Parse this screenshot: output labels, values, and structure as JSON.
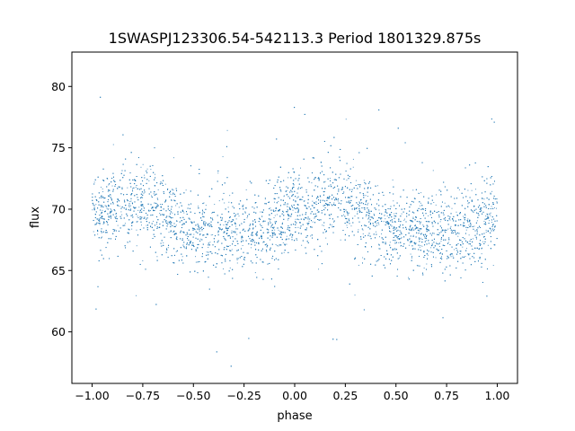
{
  "chart_data": {
    "type": "scatter",
    "title": "1SWASPJ123306.54-542113.3 Period 1801329.875s",
    "xlabel": "phase",
    "ylabel": "flux",
    "xlim": [
      -1.1,
      1.1
    ],
    "ylim": [
      55.8,
      82.8
    ],
    "x_ticks": [
      -1.0,
      -0.75,
      -0.5,
      -0.25,
      0.0,
      0.25,
      0.5,
      0.75,
      1.0
    ],
    "x_tick_labels": [
      "−1.00",
      "−0.75",
      "−0.50",
      "−0.25",
      "0.00",
      "0.25",
      "0.50",
      "0.75",
      "1.00"
    ],
    "y_ticks": [
      60,
      65,
      70,
      75,
      80
    ],
    "y_tick_labels": [
      "60",
      "65",
      "70",
      "75",
      "80"
    ],
    "grid": false,
    "legend": "none",
    "marker_color": "#1f77b4",
    "series": [
      {
        "phase_profile": [
          [
            -1.0,
            70.0
          ],
          [
            -0.95,
            69.8
          ],
          [
            -0.9,
            70.2
          ],
          [
            -0.85,
            70.6
          ],
          [
            -0.8,
            70.8
          ],
          [
            -0.75,
            70.5
          ],
          [
            -0.7,
            70.0
          ],
          [
            -0.65,
            69.6
          ],
          [
            -0.6,
            68.8
          ],
          [
            -0.55,
            68.3
          ],
          [
            -0.5,
            68.2
          ],
          [
            -0.45,
            68.1
          ],
          [
            -0.4,
            68.2
          ],
          [
            -0.35,
            68.3
          ],
          [
            -0.3,
            68.0
          ],
          [
            -0.25,
            67.8
          ],
          [
            -0.2,
            68.2
          ],
          [
            -0.15,
            68.6
          ],
          [
            -0.1,
            68.8
          ],
          [
            -0.05,
            69.3
          ],
          [
            0.0,
            70.0
          ],
          [
            0.05,
            69.8
          ],
          [
            0.1,
            70.2
          ],
          [
            0.15,
            70.6
          ],
          [
            0.2,
            70.8
          ],
          [
            0.25,
            70.5
          ],
          [
            0.3,
            70.0
          ],
          [
            0.35,
            69.6
          ],
          [
            0.4,
            68.8
          ],
          [
            0.45,
            68.3
          ],
          [
            0.5,
            68.2
          ],
          [
            0.55,
            68.1
          ],
          [
            0.6,
            68.2
          ],
          [
            0.65,
            68.3
          ],
          [
            0.7,
            68.0
          ],
          [
            0.75,
            67.8
          ],
          [
            0.8,
            68.2
          ],
          [
            0.85,
            68.6
          ],
          [
            0.9,
            68.8
          ],
          [
            0.95,
            69.3
          ],
          [
            1.0,
            70.0
          ]
        ],
        "scatter_sd": 1.6,
        "outlier_range": [
          56.5,
          81.8
        ],
        "n_points": 7000
      }
    ]
  }
}
